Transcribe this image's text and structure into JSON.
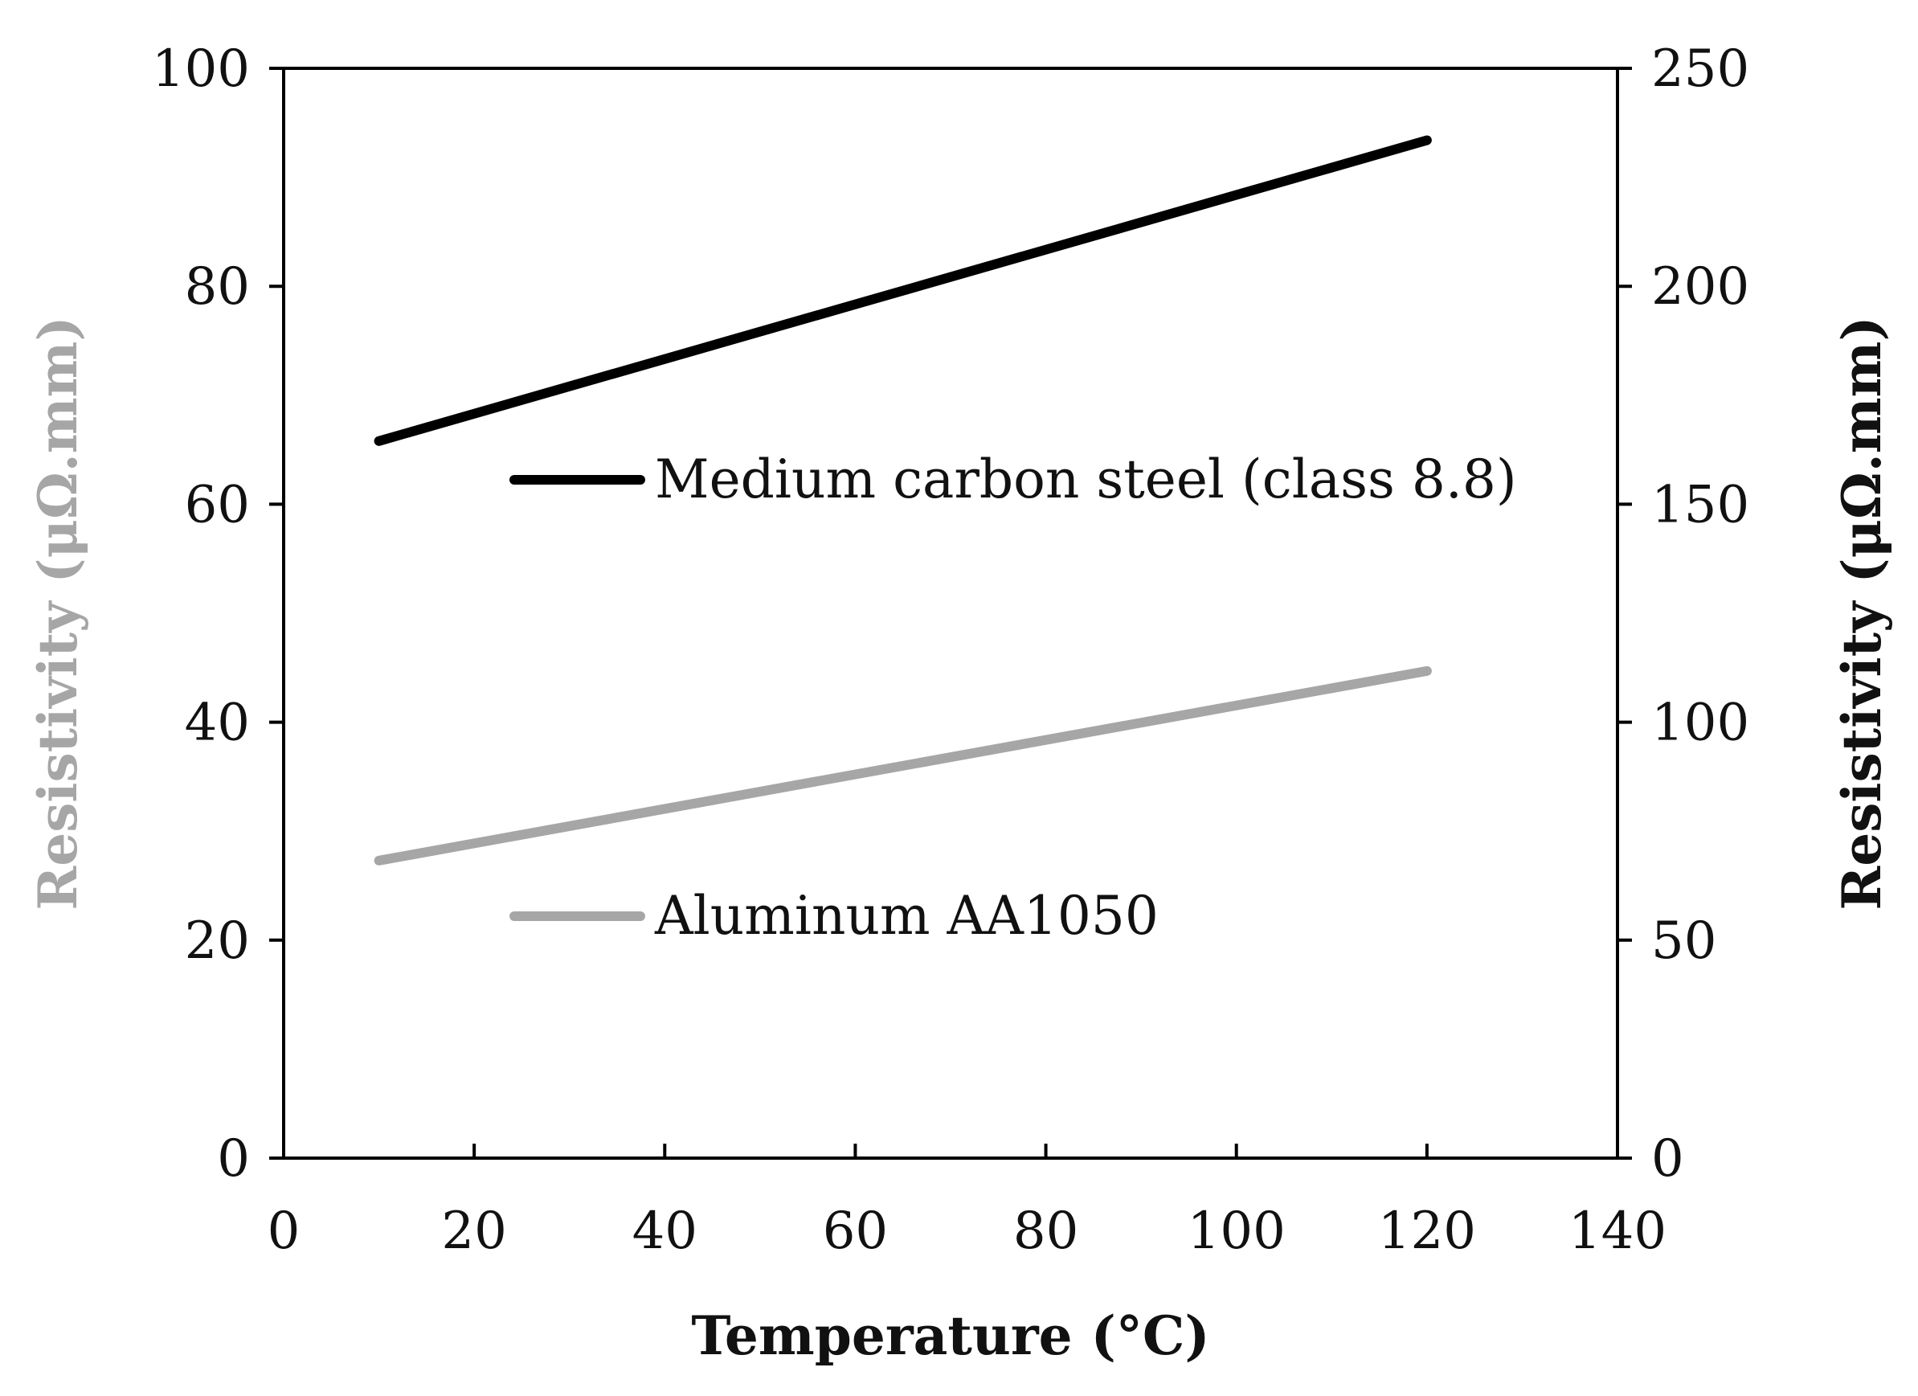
{
  "chart_data": {
    "type": "line",
    "xlabel": "Temperature (°C)",
    "ylabel_left": "Resistivity (μΩ.mm)",
    "ylabel_right": "Resistivity (μΩ.mm)",
    "xlim": [
      0,
      140
    ],
    "ylim_left": [
      0,
      100
    ],
    "ylim_right": [
      0,
      250
    ],
    "x_ticks": [
      "0",
      "20",
      "40",
      "60",
      "80",
      "100",
      "120",
      "140"
    ],
    "y_left_ticks": [
      "0",
      "20",
      "40",
      "60",
      "80",
      "100"
    ],
    "y_right_ticks": [
      "0",
      "50",
      "100",
      "150",
      "200",
      "250"
    ],
    "grid": false,
    "legend_placement": "inside-center",
    "series": [
      {
        "name": "Medium carbon steel (class 8.8)",
        "axis": "right",
        "color": "#000000",
        "x": [
          10,
          120
        ],
        "y": [
          164.5,
          233.5
        ]
      },
      {
        "name": "Aluminum AA1050",
        "axis": "left",
        "color": "#a6a6a6",
        "x": [
          10,
          120
        ],
        "y": [
          27.3,
          44.7
        ]
      }
    ]
  }
}
